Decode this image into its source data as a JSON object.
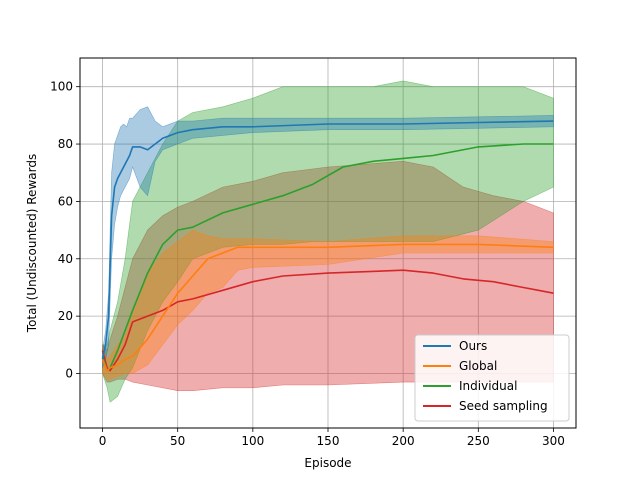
{
  "chart_data": {
    "type": "line",
    "xlabel": "Episode",
    "ylabel": "Total (Undiscounted) Rewards",
    "xlim": [
      -15,
      315
    ],
    "ylim": [
      -19,
      110
    ],
    "xticks": [
      0,
      50,
      100,
      150,
      200,
      250,
      300
    ],
    "yticks": [
      0,
      20,
      40,
      60,
      80,
      100
    ],
    "grid": true,
    "legend_position": "lower-right",
    "series": [
      {
        "name": "Ours",
        "color": "#1f77b4",
        "x": [
          0,
          2,
          4,
          6,
          8,
          10,
          12,
          14,
          16,
          18,
          20,
          25,
          30,
          35,
          40,
          50,
          60,
          80,
          100,
          150,
          200,
          250,
          300
        ],
        "y": [
          5,
          10,
          20,
          55,
          65,
          68,
          70,
          72,
          74,
          76,
          79,
          79,
          78,
          80,
          82,
          84,
          85,
          86,
          86,
          87,
          87,
          87.5,
          88
        ],
        "lower": [
          2,
          5,
          10,
          40,
          52,
          58,
          62,
          64,
          66,
          68,
          72,
          65,
          62,
          74,
          78,
          80,
          82,
          83,
          84,
          85,
          85,
          85.5,
          86
        ],
        "upper": [
          8,
          15,
          28,
          70,
          80,
          83,
          86,
          87,
          86,
          89,
          89,
          92,
          93,
          88,
          86,
          88,
          88,
          89,
          89,
          89,
          89,
          89.5,
          90
        ]
      },
      {
        "name": "Global",
        "color": "#ff7f0e",
        "x": [
          0,
          3,
          5,
          10,
          15,
          20,
          30,
          40,
          50,
          60,
          70,
          80,
          90,
          100,
          150,
          200,
          250,
          300
        ],
        "y": [
          5,
          1,
          2,
          3,
          5,
          6,
          12,
          20,
          28,
          34,
          40,
          42,
          44,
          44,
          44,
          45,
          45,
          44
        ],
        "lower": [
          0,
          -2,
          -2,
          -1,
          0,
          0,
          3,
          10,
          17,
          22,
          28,
          30,
          36,
          37,
          38,
          42,
          42,
          42
        ],
        "upper": [
          10,
          5,
          6,
          10,
          13,
          22,
          35,
          42,
          46,
          50,
          48,
          47,
          47,
          47,
          46,
          48,
          48,
          46
        ]
      },
      {
        "name": "Individual",
        "color": "#2ca02c",
        "x": [
          0,
          3,
          5,
          10,
          15,
          20,
          30,
          40,
          50,
          60,
          80,
          100,
          120,
          140,
          160,
          180,
          200,
          220,
          250,
          280,
          300
        ],
        "y": [
          6,
          1,
          2,
          8,
          15,
          22,
          35,
          45,
          50,
          51,
          56,
          59,
          62,
          66,
          72,
          74,
          75,
          76,
          79,
          80,
          80
        ],
        "lower": [
          0,
          -5,
          -10,
          -8,
          -2,
          2,
          15,
          25,
          32,
          40,
          44,
          45,
          45,
          46,
          46,
          46,
          46,
          46,
          50,
          60,
          65
        ],
        "upper": [
          10,
          10,
          15,
          25,
          40,
          60,
          70,
          80,
          88,
          91,
          93,
          96,
          100,
          100,
          100,
          100,
          102,
          100,
          100,
          100,
          96
        ]
      },
      {
        "name": "Seed sampling",
        "color": "#d62728",
        "x": [
          0,
          3,
          5,
          10,
          15,
          20,
          30,
          40,
          50,
          60,
          80,
          100,
          120,
          150,
          200,
          220,
          240,
          260,
          280,
          290,
          300
        ],
        "y": [
          8,
          2,
          1,
          5,
          10,
          18,
          20,
          22,
          25,
          26,
          29,
          32,
          34,
          35,
          36,
          35,
          33,
          32,
          30,
          29,
          28
        ],
        "lower": [
          0,
          -3,
          -3,
          -2,
          -2,
          -3,
          -4,
          -5,
          -6,
          -6,
          -5,
          -5,
          -4,
          -4,
          -3,
          -3,
          -3,
          -3,
          -3,
          -3,
          -3
        ],
        "upper": [
          10,
          8,
          12,
          20,
          30,
          40,
          50,
          55,
          58,
          60,
          65,
          67,
          70,
          72,
          74,
          72,
          65,
          62,
          60,
          58,
          56
        ]
      }
    ]
  }
}
